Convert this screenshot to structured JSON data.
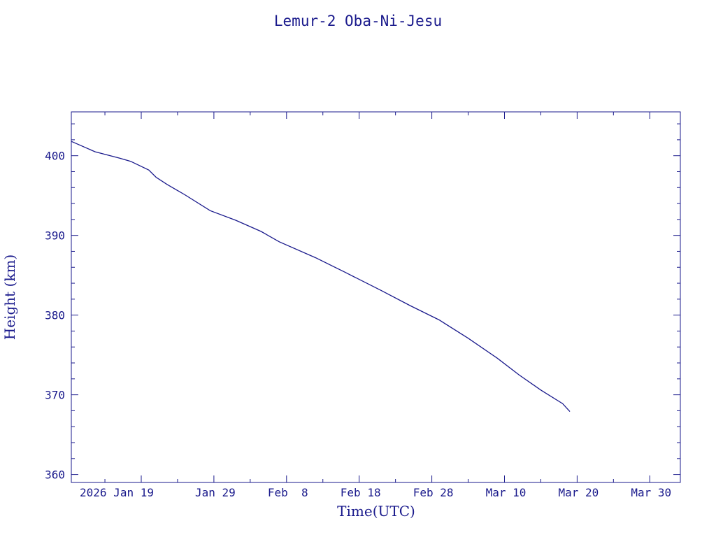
{
  "chart_data": {
    "type": "line",
    "title": "Lemur-2 Oba-Ni-Jesu",
    "xlabel": "Time(UTC)",
    "ylabel": "Height (km)",
    "x_tick_labels": [
      "2026 Jan 19",
      "Jan 29",
      "Feb  8",
      "Feb 18",
      "Feb 28",
      "Mar 10",
      "Mar 20",
      "Mar 30"
    ],
    "y_tick_labels": [
      "360",
      "370",
      "380",
      "390",
      "400"
    ],
    "xlim": [
      "2026-01-09T09:00",
      "2026-04-03T05:00"
    ],
    "ylim": [
      359,
      405.5
    ],
    "grid": false,
    "series": [
      {
        "color": "#1a1a8c",
        "points": [
          {
            "x": "2026-01-09T09:00",
            "y": 401.8
          },
          {
            "x": "2026-01-12T15:00",
            "y": 400.5
          },
          {
            "x": "2026-01-16T00:00",
            "y": 399.7
          },
          {
            "x": "2026-01-17T13:00",
            "y": 399.3
          },
          {
            "x": "2026-01-20T01:00",
            "y": 398.2
          },
          {
            "x": "2026-01-21T01:00",
            "y": 397.3
          },
          {
            "x": "2026-01-22T13:00",
            "y": 396.4
          },
          {
            "x": "2026-01-25T00:00",
            "y": 395.1
          },
          {
            "x": "2026-01-28T12:00",
            "y": 393.1
          },
          {
            "x": "2026-02-01T00:00",
            "y": 391.9
          },
          {
            "x": "2026-02-04T12:00",
            "y": 390.5
          },
          {
            "x": "2026-02-07T00:00",
            "y": 389.2
          },
          {
            "x": "2026-02-12T00:00",
            "y": 387.2
          },
          {
            "x": "2026-02-16T00:00",
            "y": 385.4
          },
          {
            "x": "2026-02-21T00:00",
            "y": 383.1
          },
          {
            "x": "2026-02-25T00:00",
            "y": 381.2
          },
          {
            "x": "2026-03-01T00:00",
            "y": 379.4
          },
          {
            "x": "2026-03-05T00:00",
            "y": 377.1
          },
          {
            "x": "2026-03-09T00:00",
            "y": 374.6
          },
          {
            "x": "2026-03-12T00:00",
            "y": 372.5
          },
          {
            "x": "2026-03-15T00:00",
            "y": 370.6
          },
          {
            "x": "2026-03-18T00:00",
            "y": 368.9
          },
          {
            "x": "2026-03-19T00:00",
            "y": 367.9
          }
        ]
      }
    ]
  }
}
